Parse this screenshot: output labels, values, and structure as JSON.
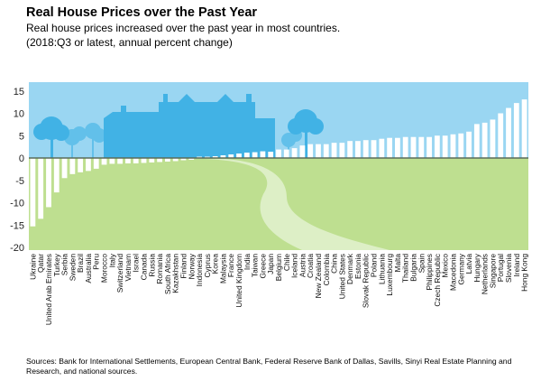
{
  "chart_data": {
    "type": "bar",
    "title": "Real House Prices over the Past Year",
    "subtitle": [
      "Real house prices increased over the past year in most countries.",
      "(2018:Q3 or latest, annual percent change)"
    ],
    "xlabel": "",
    "ylabel": "",
    "ylim": [
      -20,
      17
    ],
    "yticks": [
      15,
      10,
      5,
      0,
      -5,
      -10,
      -15,
      -20
    ],
    "grid": false,
    "categories": [
      "Ukraine",
      "Qatar",
      "United Arab Emirates",
      "Turkey",
      "Serbia",
      "Sweden",
      "Brazil",
      "Australia",
      "Peru",
      "Morocco",
      "Italy",
      "Switzerland",
      "Vietnam",
      "Israel",
      "Canada",
      "Russia",
      "Romania",
      "South Africa",
      "Kazakhstan",
      "Finland",
      "Norway",
      "Indonesia",
      "Cyprus",
      "Korea",
      "Malaysia",
      "France",
      "United Kingdom",
      "India",
      "Taiwan",
      "Greece",
      "Japan",
      "Belgium",
      "Chile",
      "Iceland",
      "Austria",
      "Croatia",
      "New Zealand",
      "Colombia",
      "China",
      "United States",
      "Denmark",
      "Estonia",
      "Slovak Republic",
      "Poland",
      "Lithuania",
      "Luxembourg",
      "Malta",
      "Thailand",
      "Bulgaria",
      "Spain",
      "Philippines",
      "Czech Republic",
      "Mexico",
      "Macedonia",
      "Germany",
      "Latvia",
      "Hungary",
      "Netherlands",
      "Singapore",
      "Portugal",
      "Slovenia",
      "Ireland",
      "Hong Kong"
    ],
    "values": [
      -15.3,
      -13.6,
      -11.0,
      -7.7,
      -4.5,
      -3.6,
      -3.2,
      -2.9,
      -2.4,
      -1.5,
      -1.3,
      -1.3,
      -1.2,
      -1.2,
      -1.1,
      -1.0,
      -0.9,
      -0.8,
      -0.7,
      -0.5,
      -0.4,
      0.3,
      0.3,
      0.4,
      0.6,
      0.8,
      1.0,
      1.2,
      1.3,
      1.5,
      1.4,
      1.9,
      1.9,
      2.2,
      2.8,
      3.1,
      3.1,
      3.1,
      3.4,
      3.4,
      3.8,
      3.8,
      4.0,
      4.0,
      4.3,
      4.5,
      4.5,
      4.7,
      4.7,
      4.7,
      4.7,
      5.0,
      5.0,
      5.3,
      5.5,
      5.9,
      7.6,
      7.9,
      8.6,
      10.0,
      11.2,
      12.3,
      13.1
    ]
  },
  "sources": "Sources: Bank for International Settlements, European Central Bank, Federal Reserve Bank of Dallas, Savills, Sinyi Real Estate Planning and Research, and national sources.",
  "colors": {
    "sky": "#9AD6F2",
    "ground": "#BEDF90",
    "path": "#DDEFC6",
    "house": "#41B2E5",
    "tree_light": "#62C0EA",
    "bar": "#FFFFFF",
    "axis": "#5A6B5A"
  }
}
